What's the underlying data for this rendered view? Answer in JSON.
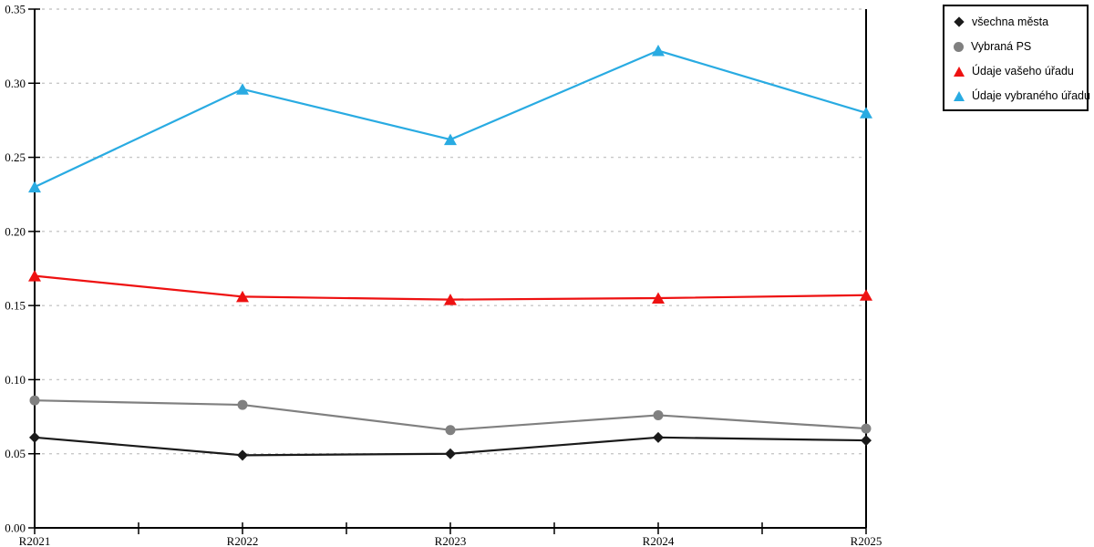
{
  "page": {
    "background_color": "#ffffff",
    "axis_color": "#000000",
    "grid_color": "#c8c8c8",
    "legend_border_color": "#000000"
  },
  "chart_data": {
    "type": "line",
    "title": "",
    "xlabel": "",
    "ylabel": "",
    "categories": [
      "R2021",
      "R2022",
      "R2023",
      "R2024",
      "R2025"
    ],
    "series": [
      {
        "name": "všechna města",
        "marker": "diamond",
        "color": "#1a1a1a",
        "values": [
          0.061,
          0.049,
          0.05,
          0.061,
          0.059
        ]
      },
      {
        "name": "Vybraná PS",
        "marker": "circle",
        "color": "#808080",
        "values": [
          0.086,
          0.083,
          0.066,
          0.076,
          0.067
        ]
      },
      {
        "name": "Údaje vašeho úřadu",
        "marker": "triangle",
        "color": "#ee1111",
        "values": [
          0.17,
          0.156,
          0.154,
          0.155,
          0.157
        ]
      },
      {
        "name": "Údaje vybraného úřadu",
        "marker": "triangle",
        "color": "#29abe2",
        "values": [
          0.23,
          0.296,
          0.262,
          0.322,
          0.28
        ]
      }
    ],
    "ylim": [
      0.0,
      0.35
    ],
    "ytick_step": 0.05,
    "ytick_labels": [
      "0.00",
      "0.05",
      "0.10",
      "0.15",
      "0.20",
      "0.25",
      "0.30",
      "0.35"
    ],
    "grid": "horizontal-dashed",
    "legend_position": "top-right"
  }
}
